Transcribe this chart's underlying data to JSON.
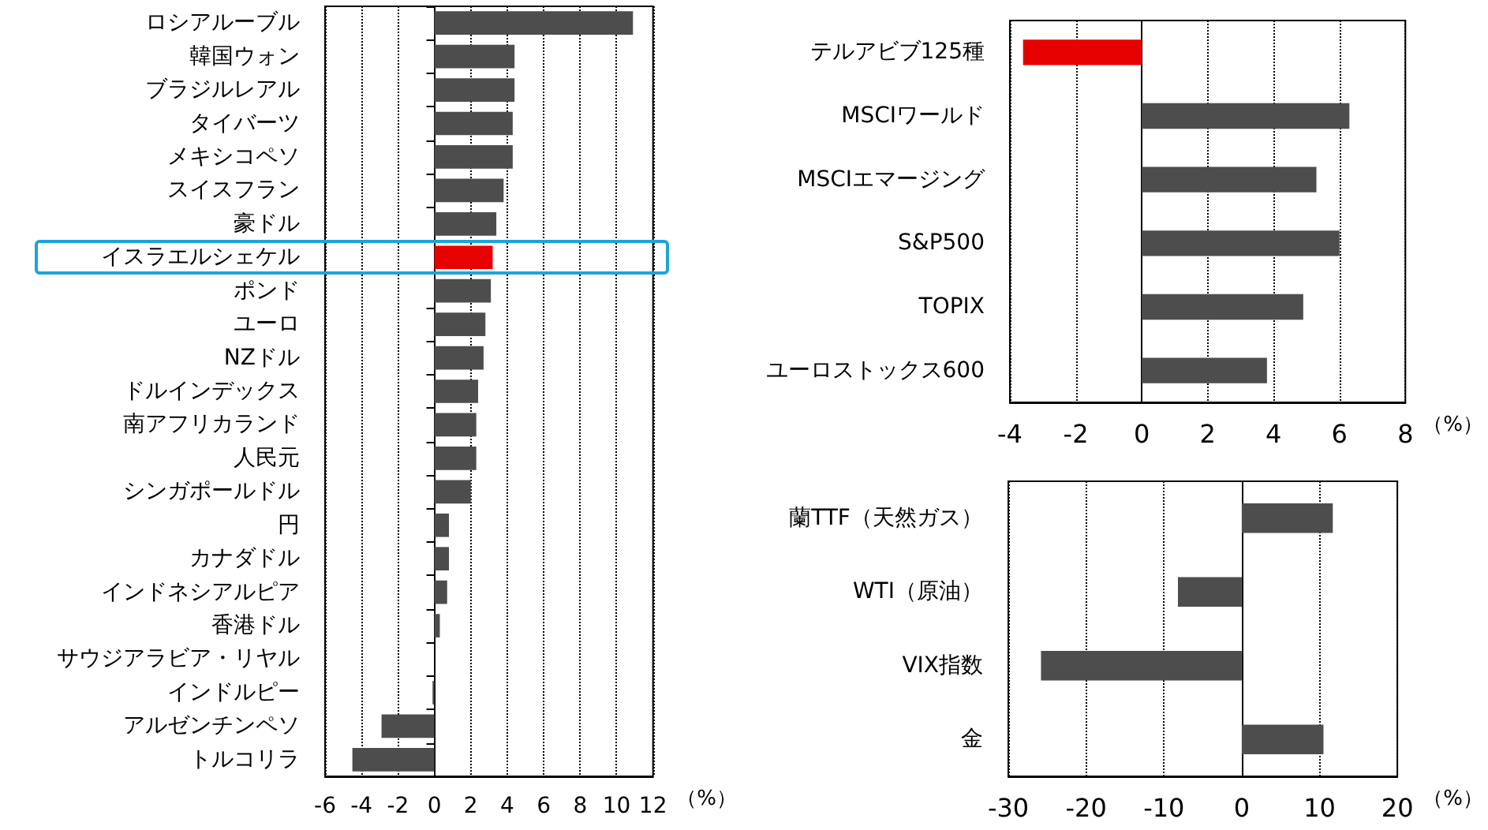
{
  "chart_data": [
    {
      "type": "bar",
      "orientation": "horizontal",
      "categories": [
        "ロシアルーブル",
        "韓国ウォン",
        "ブラジルレアル",
        "タイバーツ",
        "メキシコペソ",
        "スイスフラン",
        "豪ドル",
        "イスラエルシェケル",
        "ポンド",
        "ユーロ",
        "NZドル",
        "ドルインデックス",
        "南アフリカランド",
        "人民元",
        "シンガポールドル",
        "円",
        "カナダドル",
        "インドネシアルピア",
        "香港ドル",
        "サウジアラビア・リヤル",
        "インドルピー",
        "アルゼンチンペソ",
        "トルコリラ"
      ],
      "values": [
        10.9,
        4.4,
        4.4,
        4.3,
        4.3,
        3.8,
        3.4,
        3.2,
        3.1,
        2.8,
        2.7,
        2.4,
        2.3,
        2.3,
        2.0,
        0.8,
        0.8,
        0.7,
        0.3,
        0,
        -0.1,
        -2.9,
        -4.5
      ],
      "colors": [
        "#4d4d4d",
        "#4d4d4d",
        "#4d4d4d",
        "#4d4d4d",
        "#4d4d4d",
        "#4d4d4d",
        "#4d4d4d",
        "#e60000",
        "#4d4d4d",
        "#4d4d4d",
        "#4d4d4d",
        "#4d4d4d",
        "#4d4d4d",
        "#4d4d4d",
        "#4d4d4d",
        "#4d4d4d",
        "#4d4d4d",
        "#4d4d4d",
        "#4d4d4d",
        "#4d4d4d",
        "#4d4d4d",
        "#4d4d4d",
        "#4d4d4d"
      ],
      "xlim": [
        -6,
        12
      ],
      "xticks": [
        -6,
        -4,
        -2,
        0,
        2,
        4,
        6,
        8,
        10,
        12
      ],
      "xlabel": "（%）",
      "grid": "x"
    },
    {
      "type": "bar",
      "orientation": "horizontal",
      "categories": [
        "テルアビブ125種",
        "MSCIワールド",
        "MSCIエマージング",
        "S&P500",
        "TOPIX",
        "ユーロストックス600"
      ],
      "values": [
        -3.6,
        6.3,
        5.3,
        6.0,
        4.9,
        3.8
      ],
      "colors": [
        "#e60000",
        "#4d4d4d",
        "#4d4d4d",
        "#4d4d4d",
        "#4d4d4d",
        "#4d4d4d"
      ],
      "xlim": [
        -4,
        8
      ],
      "xticks": [
        -4,
        -2,
        0,
        2,
        4,
        6,
        8
      ],
      "xlabel": "（%）",
      "grid": "x"
    },
    {
      "type": "bar",
      "orientation": "horizontal",
      "categories": [
        "蘭TTF（天然ガス）",
        "WTI（原油）",
        "VIX指数",
        "金"
      ],
      "values": [
        11.7,
        -8.2,
        -25.8,
        10.5
      ],
      "colors": [
        "#4d4d4d",
        "#4d4d4d",
        "#4d4d4d",
        "#4d4d4d"
      ],
      "xlim": [
        -30,
        20
      ],
      "xticks": [
        -30,
        -20,
        -10,
        0,
        10,
        20
      ],
      "xlabel": "（%）",
      "grid": "x"
    }
  ]
}
